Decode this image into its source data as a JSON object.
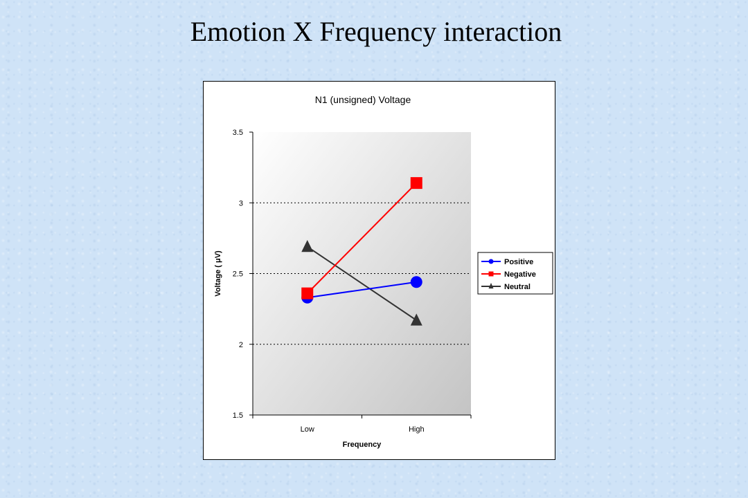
{
  "slide": {
    "title": "Emotion X Frequency interaction"
  },
  "chart_data": {
    "type": "line",
    "title": "N1 (unsigned) Voltage",
    "xlabel": "Frequency",
    "ylabel": "Voltage ( μV)",
    "categories": [
      "Low",
      "High"
    ],
    "ylim": [
      1.5,
      3.5
    ],
    "yticks": [
      "1.5",
      "2",
      "2.5",
      "3",
      "3.5"
    ],
    "grid": "horizontal-dotted",
    "legend_position": "right",
    "series": [
      {
        "name": "Positive",
        "values": [
          2.33,
          2.44
        ],
        "color": "#0000ff",
        "marker": "circle"
      },
      {
        "name": "Negative",
        "values": [
          2.36,
          3.14
        ],
        "color": "#ff0000",
        "marker": "square"
      },
      {
        "name": "Neutral",
        "values": [
          2.69,
          2.17
        ],
        "color": "#333333",
        "marker": "triangle"
      }
    ]
  }
}
